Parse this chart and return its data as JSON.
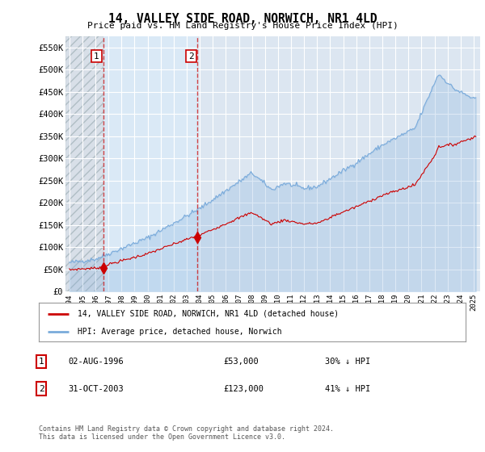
{
  "title": "14, VALLEY SIDE ROAD, NORWICH, NR1 4LD",
  "subtitle": "Price paid vs. HM Land Registry's House Price Index (HPI)",
  "background_color": "#ffffff",
  "plot_bg_color": "#dce6f1",
  "hatch_bg_color": "#c8d8ec",
  "grid_color": "#ffffff",
  "ylim": [
    0,
    575000
  ],
  "yticks": [
    0,
    50000,
    100000,
    150000,
    200000,
    250000,
    300000,
    350000,
    400000,
    450000,
    500000,
    550000
  ],
  "ytick_labels": [
    "£0",
    "£50K",
    "£100K",
    "£150K",
    "£200K",
    "£250K",
    "£300K",
    "£350K",
    "£400K",
    "£450K",
    "£500K",
    "£550K"
  ],
  "sale1_price": 53000,
  "sale1_date_str": "02-AUG-1996",
  "sale2_price": 123000,
  "sale2_date_str": "31-OCT-2003",
  "legend_label_red": "14, VALLEY SIDE ROAD, NORWICH, NR1 4LD (detached house)",
  "legend_label_blue": "HPI: Average price, detached house, Norwich",
  "footer": "Contains HM Land Registry data © Crown copyright and database right 2024.\nThis data is licensed under the Open Government Licence v3.0.",
  "table_row1": [
    "1",
    "02-AUG-1996",
    "£53,000",
    "30% ↓ HPI"
  ],
  "table_row2": [
    "2",
    "31-OCT-2003",
    "£123,000",
    "41% ↓ HPI"
  ],
  "red_color": "#cc0000",
  "blue_color": "#7aabdb",
  "blue_fill_color": "#c8daf0",
  "sale1_x": 1996.583,
  "sale2_x": 2003.833
}
